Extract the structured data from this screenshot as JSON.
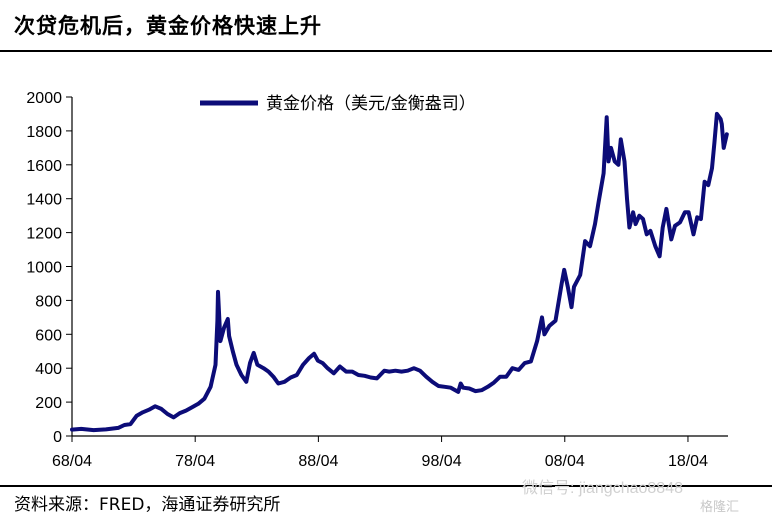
{
  "header": {
    "title": "次贷危机后，黄金价格快速上升"
  },
  "footer": {
    "source": "资料来源：FRED，海通证券研究所"
  },
  "watermark": {
    "text": "微信号: jiangchao8848",
    "logo": "格隆汇"
  },
  "chart_data": {
    "type": "line",
    "title": "",
    "xlabel": "",
    "ylabel": "",
    "ylim": [
      0,
      2000
    ],
    "yticks": [
      0,
      200,
      400,
      600,
      800,
      1000,
      1200,
      1400,
      1600,
      1800,
      2000
    ],
    "xlim": [
      1968.25,
      2021.5
    ],
    "xticks": [
      {
        "label": "68/04",
        "t": 1968.25
      },
      {
        "label": "78/04",
        "t": 1978.25
      },
      {
        "label": "88/04",
        "t": 1988.25
      },
      {
        "label": "98/04",
        "t": 1998.25
      },
      {
        "label": "08/04",
        "t": 2008.25
      },
      {
        "label": "18/04",
        "t": 2018.25
      }
    ],
    "legend": {
      "position": "top-center"
    },
    "grid": false,
    "series": [
      {
        "name": "黄金价格（美元/金衡盎司）",
        "color": "#0c0c78",
        "points": [
          [
            1968.25,
            38
          ],
          [
            1969.0,
            42
          ],
          [
            1970.0,
            35
          ],
          [
            1971.0,
            39
          ],
          [
            1972.0,
            48
          ],
          [
            1972.5,
            65
          ],
          [
            1973.0,
            70
          ],
          [
            1973.5,
            120
          ],
          [
            1974.0,
            140
          ],
          [
            1974.5,
            155
          ],
          [
            1975.0,
            175
          ],
          [
            1975.5,
            160
          ],
          [
            1976.0,
            130
          ],
          [
            1976.5,
            110
          ],
          [
            1977.0,
            135
          ],
          [
            1977.5,
            150
          ],
          [
            1978.0,
            170
          ],
          [
            1978.5,
            190
          ],
          [
            1979.0,
            220
          ],
          [
            1979.5,
            290
          ],
          [
            1979.9,
            420
          ],
          [
            1980.05,
            680
          ],
          [
            1980.1,
            850
          ],
          [
            1980.3,
            560
          ],
          [
            1980.6,
            640
          ],
          [
            1980.9,
            690
          ],
          [
            1981.0,
            590
          ],
          [
            1981.3,
            500
          ],
          [
            1981.6,
            420
          ],
          [
            1982.0,
            360
          ],
          [
            1982.4,
            320
          ],
          [
            1982.7,
            430
          ],
          [
            1983.0,
            490
          ],
          [
            1983.3,
            420
          ],
          [
            1983.8,
            400
          ],
          [
            1984.2,
            380
          ],
          [
            1984.6,
            350
          ],
          [
            1985.0,
            310
          ],
          [
            1985.5,
            320
          ],
          [
            1986.0,
            345
          ],
          [
            1986.5,
            360
          ],
          [
            1987.0,
            420
          ],
          [
            1987.5,
            460
          ],
          [
            1987.9,
            485
          ],
          [
            1988.2,
            445
          ],
          [
            1988.6,
            430
          ],
          [
            1989.0,
            400
          ],
          [
            1989.5,
            370
          ],
          [
            1990.0,
            410
          ],
          [
            1990.5,
            380
          ],
          [
            1991.0,
            380
          ],
          [
            1991.5,
            360
          ],
          [
            1992.0,
            355
          ],
          [
            1992.5,
            345
          ],
          [
            1993.0,
            340
          ],
          [
            1993.6,
            385
          ],
          [
            1994.0,
            380
          ],
          [
            1994.5,
            385
          ],
          [
            1995.0,
            380
          ],
          [
            1995.5,
            385
          ],
          [
            1996.0,
            400
          ],
          [
            1996.5,
            385
          ],
          [
            1997.0,
            350
          ],
          [
            1997.5,
            320
          ],
          [
            1998.0,
            295
          ],
          [
            1998.5,
            290
          ],
          [
            1999.0,
            285
          ],
          [
            1999.6,
            260
          ],
          [
            1999.8,
            310
          ],
          [
            2000.0,
            285
          ],
          [
            2000.5,
            280
          ],
          [
            2001.0,
            265
          ],
          [
            2001.5,
            270
          ],
          [
            2002.0,
            290
          ],
          [
            2002.5,
            315
          ],
          [
            2003.0,
            350
          ],
          [
            2003.5,
            350
          ],
          [
            2004.0,
            400
          ],
          [
            2004.5,
            390
          ],
          [
            2005.0,
            430
          ],
          [
            2005.5,
            440
          ],
          [
            2006.0,
            560
          ],
          [
            2006.4,
            700
          ],
          [
            2006.6,
            600
          ],
          [
            2007.0,
            650
          ],
          [
            2007.5,
            680
          ],
          [
            2008.0,
            900
          ],
          [
            2008.2,
            980
          ],
          [
            2008.5,
            880
          ],
          [
            2008.8,
            760
          ],
          [
            2009.0,
            880
          ],
          [
            2009.5,
            950
          ],
          [
            2009.9,
            1150
          ],
          [
            2010.3,
            1120
          ],
          [
            2010.7,
            1250
          ],
          [
            2011.0,
            1380
          ],
          [
            2011.4,
            1550
          ],
          [
            2011.65,
            1880
          ],
          [
            2011.8,
            1620
          ],
          [
            2012.0,
            1700
          ],
          [
            2012.3,
            1620
          ],
          [
            2012.6,
            1600
          ],
          [
            2012.8,
            1750
          ],
          [
            2013.1,
            1620
          ],
          [
            2013.3,
            1400
          ],
          [
            2013.5,
            1230
          ],
          [
            2013.8,
            1320
          ],
          [
            2014.0,
            1250
          ],
          [
            2014.3,
            1300
          ],
          [
            2014.6,
            1280
          ],
          [
            2014.9,
            1190
          ],
          [
            2015.2,
            1210
          ],
          [
            2015.6,
            1120
          ],
          [
            2015.95,
            1060
          ],
          [
            2016.2,
            1230
          ],
          [
            2016.5,
            1340
          ],
          [
            2016.9,
            1160
          ],
          [
            2017.2,
            1240
          ],
          [
            2017.6,
            1260
          ],
          [
            2018.0,
            1320
          ],
          [
            2018.3,
            1320
          ],
          [
            2018.7,
            1190
          ],
          [
            2019.0,
            1290
          ],
          [
            2019.3,
            1280
          ],
          [
            2019.6,
            1500
          ],
          [
            2019.9,
            1480
          ],
          [
            2020.2,
            1580
          ],
          [
            2020.4,
            1730
          ],
          [
            2020.6,
            1900
          ],
          [
            2020.9,
            1870
          ],
          [
            2021.0,
            1840
          ],
          [
            2021.15,
            1700
          ],
          [
            2021.4,
            1780
          ]
        ]
      }
    ]
  }
}
